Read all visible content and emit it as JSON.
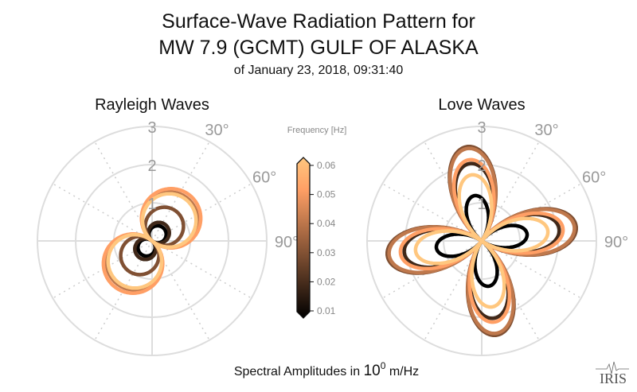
{
  "chart_data": {
    "type": "polar-line",
    "title_lines": [
      "Surface-Wave Radiation Pattern for",
      "MW 7.9 (GCMT) GULF OF ALASKA"
    ],
    "subtitle": "of January 23, 2018, 09:31:40",
    "xlabel_prefix": "Spectral Amplitudes in ",
    "xlabel_base": "10",
    "xlabel_exp": "0",
    "xlabel_unit": " m/Hz",
    "radial_ticks": [
      "1",
      "2",
      "3"
    ],
    "radial_max": 3,
    "angle_ticks": [
      "30°",
      "60°",
      "90°"
    ],
    "angle_direction": "clockwise from north",
    "colorbar": {
      "title": "Frequency [Hz]",
      "ticks": [
        "0.01",
        "0.02",
        "0.03",
        "0.04",
        "0.05",
        "0.06"
      ],
      "range": [
        0.01,
        0.06
      ],
      "colormap": "copper",
      "colors": [
        "#000000",
        "#402819",
        "#805033",
        "#bf784c",
        "#ff9f65",
        "#ffc77f"
      ]
    },
    "panels": [
      {
        "title": "Rayleigh Waves",
        "lobes": 2,
        "orientation_deg": 40,
        "series": [
          {
            "freq": 0.01,
            "amplitude": 0.45,
            "color": "#000000"
          },
          {
            "freq": 0.02,
            "amplitude": 0.55,
            "color": "#402819"
          },
          {
            "freq": 0.03,
            "amplitude": 1.0,
            "color": "#805033"
          },
          {
            "freq": 0.04,
            "amplitude": 1.45,
            "color": "#bf784c"
          },
          {
            "freq": 0.05,
            "amplitude": 1.55,
            "color": "#ff9f65"
          },
          {
            "freq": 0.06,
            "amplitude": 1.4,
            "color": "#ffc77f"
          }
        ]
      },
      {
        "title": "Love Waves",
        "lobes": 4,
        "orientation_deg": -9,
        "series": [
          {
            "freq": 0.01,
            "amplitude": 1.2,
            "color": "#000000"
          },
          {
            "freq": 0.02,
            "amplitude": 2.05,
            "color": "#402819"
          },
          {
            "freq": 0.03,
            "amplitude": 2.5,
            "color": "#805033"
          },
          {
            "freq": 0.04,
            "amplitude": 2.45,
            "color": "#bf784c"
          },
          {
            "freq": 0.05,
            "amplitude": 2.15,
            "color": "#ff9f65"
          },
          {
            "freq": 0.06,
            "amplitude": 1.75,
            "color": "#ffc77f"
          }
        ]
      }
    ]
  },
  "logo": "IRIS"
}
